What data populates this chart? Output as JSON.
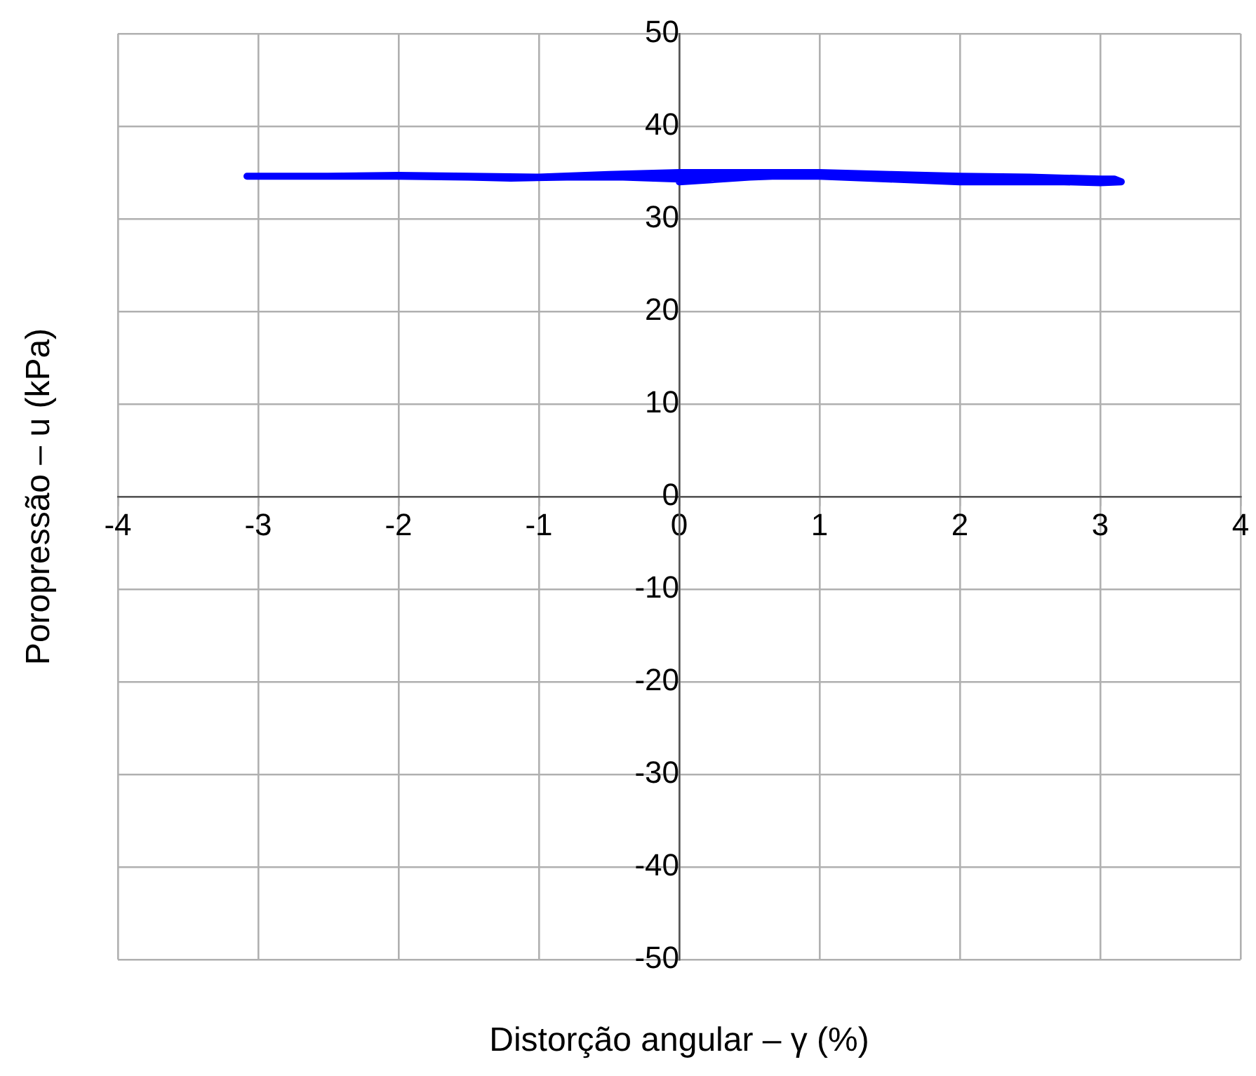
{
  "chart_data": {
    "type": "line",
    "xlabel": "Distorção angular – γ (%)",
    "ylabel": "Poropressão – u (kPa)",
    "x": [
      0,
      0.5,
      1,
      1.5,
      2,
      2.5,
      3,
      3.15,
      3.1,
      3,
      2.5,
      2,
      1.5,
      1,
      0.5,
      0,
      -0.5,
      -1,
      -1.5,
      -2,
      -2.5,
      -3.08,
      -2.5,
      -2,
      -1.5,
      -1.2,
      -0.8,
      -0.4,
      0,
      0.5,
      1,
      1.5,
      2,
      2.5,
      3,
      3.1
    ],
    "series": [
      {
        "color": "#0000ff",
        "values": [
          34,
          34.5,
          34.8,
          34.6,
          34.3,
          34.1,
          33.9,
          34,
          34.3,
          34.3,
          34.5,
          34.6,
          34.8,
          35,
          35,
          35,
          34.8,
          34.5,
          34.6,
          34.7,
          34.6,
          34.6,
          34.6,
          34.6,
          34.5,
          34.4,
          34.5,
          34.5,
          34.3,
          34.6,
          34.6,
          34.3,
          34,
          34,
          34,
          34.2
        ]
      }
    ],
    "xlim": [
      -4,
      4
    ],
    "xticks": [
      -4,
      -3,
      -2,
      -1,
      0,
      1,
      2,
      3,
      4
    ],
    "ylim": [
      -50,
      50
    ],
    "yticks": [
      -50,
      -40,
      -30,
      -20,
      -10,
      0,
      10,
      20,
      30,
      40,
      50
    ],
    "grid": true,
    "legend": false,
    "marker": "none",
    "line_style": "solid"
  }
}
